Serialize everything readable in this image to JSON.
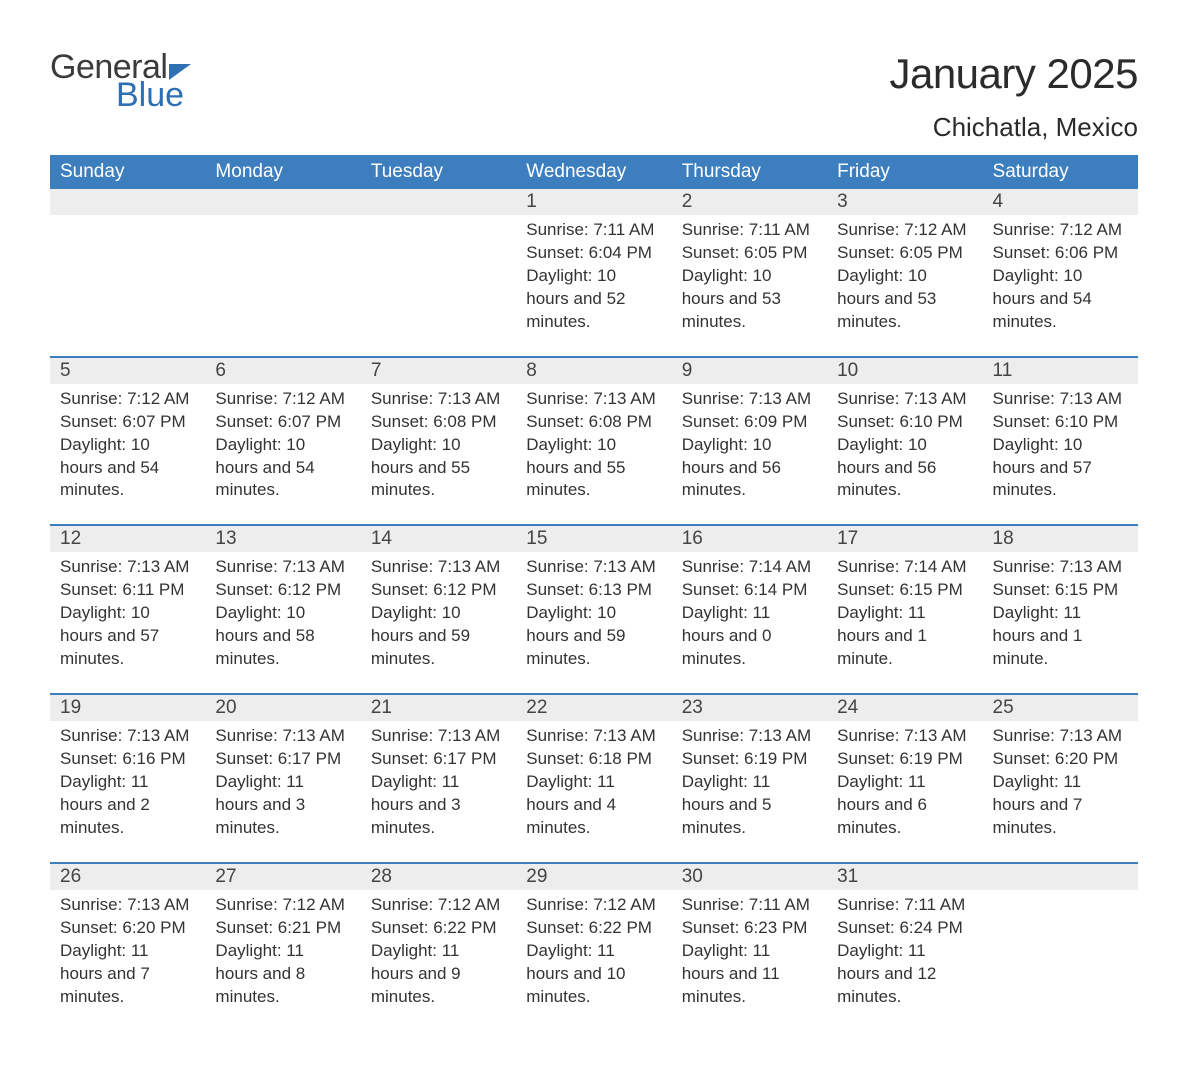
{
  "brand": {
    "part1": "General",
    "part2": "Blue"
  },
  "title": "January 2025",
  "location": "Chichatla, Mexico",
  "colors": {
    "header_bg": "#3d7ebf",
    "header_text": "#ffffff",
    "daynum_bg": "#ededed",
    "daynum_border": "#3d7ebf",
    "body_text": "#333333",
    "title_text": "#2b2b2b",
    "brand_accent": "#2f6fb3"
  },
  "typography": {
    "title_fontsize": 42,
    "location_fontsize": 26,
    "weekday_fontsize": 19,
    "daynum_fontsize": 19,
    "cell_fontsize": 17
  },
  "weekdays": [
    "Sunday",
    "Monday",
    "Tuesday",
    "Wednesday",
    "Thursday",
    "Friday",
    "Saturday"
  ],
  "weeks": [
    [
      {
        "n": "",
        "sr": "",
        "ss": "",
        "dl": ""
      },
      {
        "n": "",
        "sr": "",
        "ss": "",
        "dl": ""
      },
      {
        "n": "",
        "sr": "",
        "ss": "",
        "dl": ""
      },
      {
        "n": "1",
        "sr": "Sunrise: 7:11 AM",
        "ss": "Sunset: 6:04 PM",
        "dl": "Daylight: 10 hours and 52 minutes."
      },
      {
        "n": "2",
        "sr": "Sunrise: 7:11 AM",
        "ss": "Sunset: 6:05 PM",
        "dl": "Daylight: 10 hours and 53 minutes."
      },
      {
        "n": "3",
        "sr": "Sunrise: 7:12 AM",
        "ss": "Sunset: 6:05 PM",
        "dl": "Daylight: 10 hours and 53 minutes."
      },
      {
        "n": "4",
        "sr": "Sunrise: 7:12 AM",
        "ss": "Sunset: 6:06 PM",
        "dl": "Daylight: 10 hours and 54 minutes."
      }
    ],
    [
      {
        "n": "5",
        "sr": "Sunrise: 7:12 AM",
        "ss": "Sunset: 6:07 PM",
        "dl": "Daylight: 10 hours and 54 minutes."
      },
      {
        "n": "6",
        "sr": "Sunrise: 7:12 AM",
        "ss": "Sunset: 6:07 PM",
        "dl": "Daylight: 10 hours and 54 minutes."
      },
      {
        "n": "7",
        "sr": "Sunrise: 7:13 AM",
        "ss": "Sunset: 6:08 PM",
        "dl": "Daylight: 10 hours and 55 minutes."
      },
      {
        "n": "8",
        "sr": "Sunrise: 7:13 AM",
        "ss": "Sunset: 6:08 PM",
        "dl": "Daylight: 10 hours and 55 minutes."
      },
      {
        "n": "9",
        "sr": "Sunrise: 7:13 AM",
        "ss": "Sunset: 6:09 PM",
        "dl": "Daylight: 10 hours and 56 minutes."
      },
      {
        "n": "10",
        "sr": "Sunrise: 7:13 AM",
        "ss": "Sunset: 6:10 PM",
        "dl": "Daylight: 10 hours and 56 minutes."
      },
      {
        "n": "11",
        "sr": "Sunrise: 7:13 AM",
        "ss": "Sunset: 6:10 PM",
        "dl": "Daylight: 10 hours and 57 minutes."
      }
    ],
    [
      {
        "n": "12",
        "sr": "Sunrise: 7:13 AM",
        "ss": "Sunset: 6:11 PM",
        "dl": "Daylight: 10 hours and 57 minutes."
      },
      {
        "n": "13",
        "sr": "Sunrise: 7:13 AM",
        "ss": "Sunset: 6:12 PM",
        "dl": "Daylight: 10 hours and 58 minutes."
      },
      {
        "n": "14",
        "sr": "Sunrise: 7:13 AM",
        "ss": "Sunset: 6:12 PM",
        "dl": "Daylight: 10 hours and 59 minutes."
      },
      {
        "n": "15",
        "sr": "Sunrise: 7:13 AM",
        "ss": "Sunset: 6:13 PM",
        "dl": "Daylight: 10 hours and 59 minutes."
      },
      {
        "n": "16",
        "sr": "Sunrise: 7:14 AM",
        "ss": "Sunset: 6:14 PM",
        "dl": "Daylight: 11 hours and 0 minutes."
      },
      {
        "n": "17",
        "sr": "Sunrise: 7:14 AM",
        "ss": "Sunset: 6:15 PM",
        "dl": "Daylight: 11 hours and 1 minute."
      },
      {
        "n": "18",
        "sr": "Sunrise: 7:13 AM",
        "ss": "Sunset: 6:15 PM",
        "dl": "Daylight: 11 hours and 1 minute."
      }
    ],
    [
      {
        "n": "19",
        "sr": "Sunrise: 7:13 AM",
        "ss": "Sunset: 6:16 PM",
        "dl": "Daylight: 11 hours and 2 minutes."
      },
      {
        "n": "20",
        "sr": "Sunrise: 7:13 AM",
        "ss": "Sunset: 6:17 PM",
        "dl": "Daylight: 11 hours and 3 minutes."
      },
      {
        "n": "21",
        "sr": "Sunrise: 7:13 AM",
        "ss": "Sunset: 6:17 PM",
        "dl": "Daylight: 11 hours and 3 minutes."
      },
      {
        "n": "22",
        "sr": "Sunrise: 7:13 AM",
        "ss": "Sunset: 6:18 PM",
        "dl": "Daylight: 11 hours and 4 minutes."
      },
      {
        "n": "23",
        "sr": "Sunrise: 7:13 AM",
        "ss": "Sunset: 6:19 PM",
        "dl": "Daylight: 11 hours and 5 minutes."
      },
      {
        "n": "24",
        "sr": "Sunrise: 7:13 AM",
        "ss": "Sunset: 6:19 PM",
        "dl": "Daylight: 11 hours and 6 minutes."
      },
      {
        "n": "25",
        "sr": "Sunrise: 7:13 AM",
        "ss": "Sunset: 6:20 PM",
        "dl": "Daylight: 11 hours and 7 minutes."
      }
    ],
    [
      {
        "n": "26",
        "sr": "Sunrise: 7:13 AM",
        "ss": "Sunset: 6:20 PM",
        "dl": "Daylight: 11 hours and 7 minutes."
      },
      {
        "n": "27",
        "sr": "Sunrise: 7:12 AM",
        "ss": "Sunset: 6:21 PM",
        "dl": "Daylight: 11 hours and 8 minutes."
      },
      {
        "n": "28",
        "sr": "Sunrise: 7:12 AM",
        "ss": "Sunset: 6:22 PM",
        "dl": "Daylight: 11 hours and 9 minutes."
      },
      {
        "n": "29",
        "sr": "Sunrise: 7:12 AM",
        "ss": "Sunset: 6:22 PM",
        "dl": "Daylight: 11 hours and 10 minutes."
      },
      {
        "n": "30",
        "sr": "Sunrise: 7:11 AM",
        "ss": "Sunset: 6:23 PM",
        "dl": "Daylight: 11 hours and 11 minutes."
      },
      {
        "n": "31",
        "sr": "Sunrise: 7:11 AM",
        "ss": "Sunset: 6:24 PM",
        "dl": "Daylight: 11 hours and 12 minutes."
      },
      {
        "n": "",
        "sr": "",
        "ss": "",
        "dl": ""
      }
    ]
  ]
}
